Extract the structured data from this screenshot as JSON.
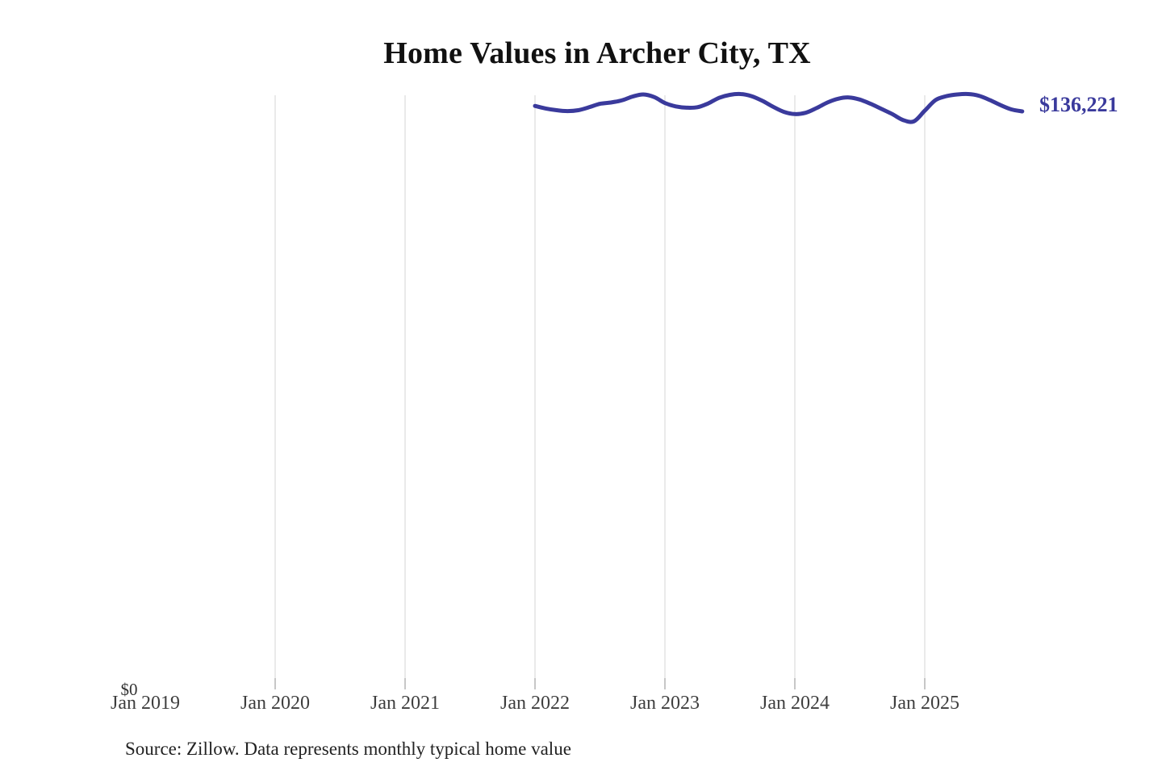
{
  "header": {
    "title": "Home Values in Archer City, TX"
  },
  "chart_data": {
    "type": "line",
    "title": "Home Values in Archer City, TX",
    "series_name": "Monthly typical home value",
    "x": [
      "2022-01",
      "2022-02",
      "2022-03",
      "2022-04",
      "2022-05",
      "2022-06",
      "2022-07",
      "2022-08",
      "2022-09",
      "2022-10",
      "2022-11",
      "2022-12",
      "2023-01",
      "2023-02",
      "2023-03",
      "2023-04",
      "2023-05",
      "2023-06",
      "2023-07",
      "2023-08",
      "2023-09",
      "2023-10",
      "2023-11",
      "2023-12",
      "2024-01",
      "2024-02",
      "2024-03",
      "2024-04",
      "2024-05",
      "2024-06",
      "2024-07",
      "2024-08",
      "2024-09",
      "2024-10",
      "2024-11",
      "2024-12",
      "2025-01",
      "2025-02",
      "2025-03",
      "2025-04",
      "2025-05",
      "2025-06",
      "2025-07",
      "2025-08",
      "2025-09",
      "2025-10"
    ],
    "values": [
      137500,
      136900,
      136500,
      136300,
      136500,
      137200,
      138000,
      138300,
      138800,
      139700,
      140200,
      139600,
      138200,
      137400,
      137100,
      137200,
      138100,
      139400,
      140100,
      140300,
      139800,
      138700,
      137300,
      136100,
      135600,
      135900,
      137000,
      138300,
      139200,
      139500,
      139000,
      138000,
      136800,
      135600,
      134200,
      133900,
      136400,
      138900,
      139800,
      140200,
      140300,
      139900,
      138900,
      137700,
      136700,
      136221
    ],
    "end_label": "$136,221",
    "x_tick_labels": [
      "Jan 2019",
      "Jan 2020",
      "Jan 2021",
      "Jan 2022",
      "Jan 2023",
      "Jan 2024",
      "Jan 2025"
    ],
    "y_tick_labels": [
      "$0"
    ],
    "ylim": [
      0,
      141000
    ],
    "grid": "vertical-only",
    "legend": "none",
    "line_color": "#3a3a9c"
  },
  "footer": {
    "source": "Source: Zillow. Data represents monthly typical home value"
  },
  "colors": {
    "line": "#3a3a9c",
    "value_label": "#3a3a9c",
    "grid": "#d6d6d6",
    "tick": "#8f8f8f",
    "title": "#111111",
    "axis_label": "#3e3e3e",
    "source": "#222222"
  }
}
